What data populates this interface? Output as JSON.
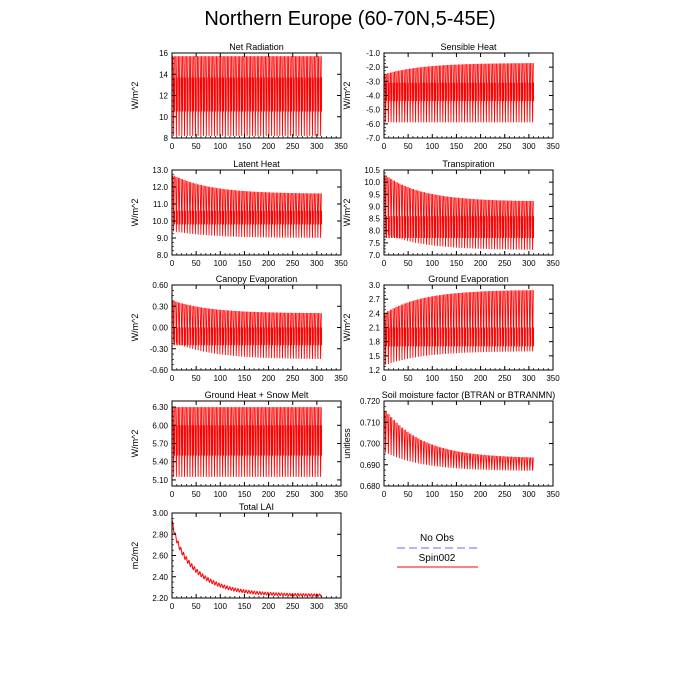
{
  "title": "Northern Europe (60-70N,5-45E)",
  "colors": {
    "series": "#ff0000",
    "noobs": "#9999ff",
    "axis": "#000000"
  },
  "legend": {
    "items": [
      {
        "label": "No Obs",
        "style": "dashed"
      },
      {
        "label": "Spin002",
        "style": "solid"
      }
    ]
  },
  "chart_data": [
    {
      "type": "line",
      "title": "Net Radiation",
      "ylabel": "W/m^2",
      "xlim": [
        0,
        350
      ],
      "xticks": [
        "0",
        "50",
        "100",
        "150",
        "200",
        "250",
        "300",
        "350"
      ],
      "ylim": [
        8,
        16
      ],
      "yticks": [
        "8",
        "10",
        "12",
        "14",
        "16"
      ],
      "series": [
        {
          "name": "Spin002",
          "x_end": 310,
          "start_range": [
            8.2,
            15.7
          ],
          "end_range": [
            8.2,
            15.7
          ],
          "bands": [
            [
              10.5,
              13.7
            ]
          ]
        }
      ]
    },
    {
      "type": "line",
      "title": "Sensible Heat",
      "ylabel": "W/m^2",
      "xlim": [
        0,
        350
      ],
      "xticks": [
        "0",
        "50",
        "100",
        "150",
        "200",
        "250",
        "300",
        "350"
      ],
      "ylim": [
        -7,
        -1
      ],
      "yticks": [
        "-7.0",
        "-6.0",
        "-5.0",
        "-4.0",
        "-3.0",
        "-2.0",
        "-1.0"
      ],
      "series": [
        {
          "name": "Spin002",
          "x_end": 310,
          "start_range": [
            -5.9,
            -2.5
          ],
          "end_range": [
            -5.9,
            -1.7
          ],
          "bands": [
            [
              -4.4,
              -3.1
            ]
          ]
        }
      ]
    },
    {
      "type": "line",
      "title": "Latent Heat",
      "ylabel": "W/m^2",
      "xlim": [
        0,
        350
      ],
      "xticks": [
        "0",
        "50",
        "100",
        "150",
        "200",
        "250",
        "300",
        "350"
      ],
      "ylim": [
        8,
        13
      ],
      "yticks": [
        "8.0",
        "9.0",
        "10.0",
        "11.0",
        "12.0",
        "13.0"
      ],
      "series": [
        {
          "name": "Spin002",
          "x_end": 310,
          "start_range": [
            9.4,
            12.7
          ],
          "end_range": [
            9.0,
            11.6
          ],
          "bands": [
            [
              9.8,
              10.6
            ]
          ]
        }
      ]
    },
    {
      "type": "line",
      "title": "Transpiration",
      "ylabel": "W/m^2",
      "xlim": [
        0,
        350
      ],
      "xticks": [
        "0",
        "50",
        "100",
        "150",
        "200",
        "250",
        "300",
        "350"
      ],
      "ylim": [
        7,
        10.5
      ],
      "yticks": [
        "7.0",
        "7.5",
        "8.0",
        "8.5",
        "9.0",
        "9.5",
        "10.0",
        "10.5"
      ],
      "series": [
        {
          "name": "Spin002",
          "x_end": 310,
          "start_range": [
            7.9,
            10.3
          ],
          "end_range": [
            7.2,
            9.2
          ],
          "bands": [
            [
              7.7,
              8.6
            ]
          ]
        }
      ]
    },
    {
      "type": "line",
      "title": "Canopy Evaporation",
      "ylabel": "W/m^2",
      "xlim": [
        0,
        350
      ],
      "xticks": [
        "0",
        "50",
        "100",
        "150",
        "200",
        "250",
        "300",
        "350"
      ],
      "ylim": [
        -0.6,
        0.6
      ],
      "yticks": [
        "-0.60",
        "-0.30",
        "0.00",
        "0.30",
        "0.60"
      ],
      "series": [
        {
          "name": "Spin002",
          "x_end": 310,
          "start_range": [
            -0.2,
            0.38
          ],
          "end_range": [
            -0.45,
            0.2
          ],
          "bands": [
            [
              -0.25,
              0.0
            ]
          ]
        }
      ]
    },
    {
      "type": "line",
      "title": "Ground Evaporation",
      "ylabel": "W/m^2",
      "xlim": [
        0,
        350
      ],
      "xticks": [
        "0",
        "50",
        "100",
        "150",
        "200",
        "250",
        "300",
        "350"
      ],
      "ylim": [
        1.2,
        3.0
      ],
      "yticks": [
        "1.2",
        "1.5",
        "1.8",
        "2.1",
        "2.4",
        "2.7",
        "3.0"
      ],
      "series": [
        {
          "name": "Spin002",
          "x_end": 310,
          "start_range": [
            1.3,
            2.4
          ],
          "end_range": [
            1.6,
            2.9
          ],
          "bands": [
            [
              1.7,
              2.1
            ]
          ]
        }
      ]
    },
    {
      "type": "line",
      "title": "Ground Heat + Snow Melt",
      "ylabel": "W/m^2",
      "xlim": [
        0,
        350
      ],
      "xticks": [
        "0",
        "50",
        "100",
        "150",
        "200",
        "250",
        "300",
        "350"
      ],
      "ylim": [
        5.0,
        6.4
      ],
      "yticks": [
        "5.10",
        "5.40",
        "5.70",
        "6.00",
        "6.30"
      ],
      "series": [
        {
          "name": "Spin002",
          "x_end": 310,
          "start_range": [
            5.15,
            6.3
          ],
          "end_range": [
            5.15,
            6.3
          ],
          "bands": [
            [
              5.5,
              6.0
            ]
          ]
        }
      ]
    },
    {
      "type": "line",
      "title": "Soil moisture factor (BTRAN or BTRANMN)",
      "ylabel": "unitless",
      "xlim": [
        0,
        350
      ],
      "xticks": [
        "0",
        "50",
        "100",
        "150",
        "200",
        "250",
        "300",
        "350"
      ],
      "ylim": [
        0.68,
        0.72
      ],
      "yticks": [
        "0.680",
        "0.690",
        "0.700",
        "0.710",
        "0.720"
      ],
      "series": [
        {
          "name": "Spin002",
          "x_end": 310,
          "start_range": [
            0.696,
            0.716
          ],
          "end_range": [
            0.687,
            0.693
          ],
          "bands": []
        }
      ]
    },
    {
      "type": "line",
      "title": "Total LAI",
      "ylabel": "m2/m2",
      "xlim": [
        0,
        350
      ],
      "xticks": [
        "0",
        "50",
        "100",
        "150",
        "200",
        "250",
        "300",
        "350"
      ],
      "ylim": [
        2.2,
        3.0
      ],
      "yticks": [
        "2.20",
        "2.40",
        "2.60",
        "2.80",
        "3.00"
      ],
      "series": [
        {
          "name": "Spin002",
          "x_end": 310,
          "start_range": [
            2.95,
            2.95
          ],
          "end_range": [
            2.21,
            2.24
          ],
          "bands": [],
          "decay": true
        }
      ]
    }
  ]
}
